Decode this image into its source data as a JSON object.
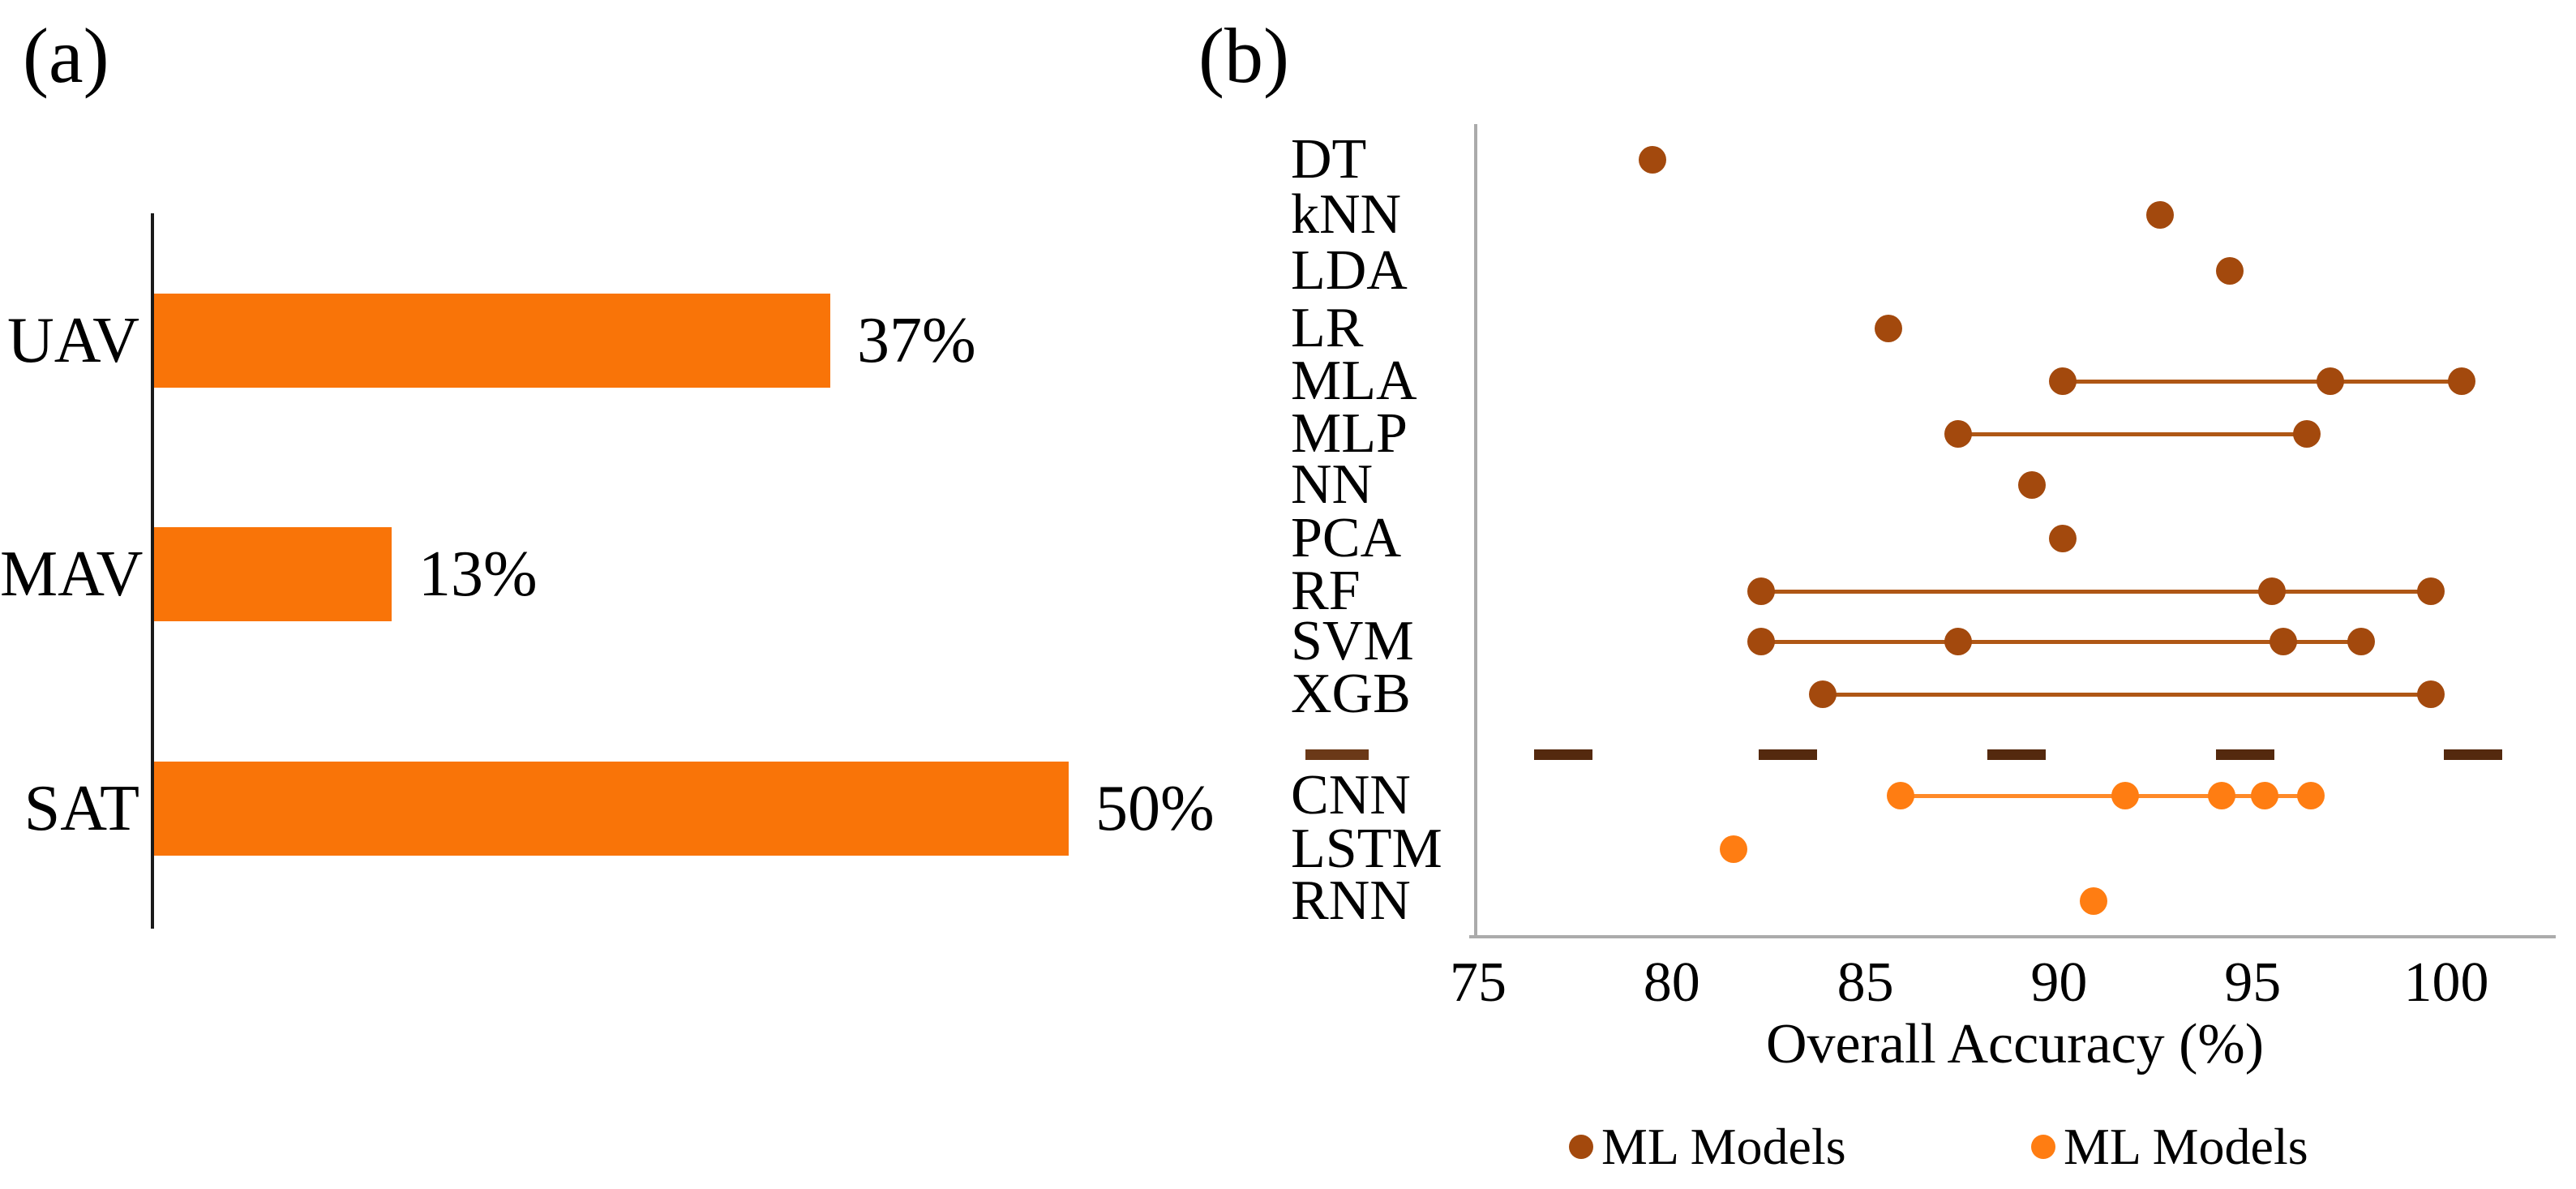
{
  "figure": {
    "panel_a_label": "(a)",
    "panel_b_label": "(b)"
  },
  "colors": {
    "bar_orange": "#F97408",
    "ml_brown": "#A3490D",
    "ml_line": "#AF5715",
    "dl_orange": "#FF7D12",
    "dl_line": "#FF8A28",
    "separator_dash": "#54290E",
    "separator_label_dash": "#6B3918",
    "axis_gray": "#ABABAB",
    "axis_black": "#1A1A1A"
  },
  "chart_data": [
    {
      "type": "bar",
      "orientation": "horizontal",
      "title": "",
      "xlabel": "",
      "ylabel": "",
      "categories": [
        "UAV",
        "MAV",
        "SAT"
      ],
      "values": [
        37,
        13,
        50
      ],
      "value_labels": [
        "37%",
        "13%",
        "50%"
      ],
      "xlim": [
        0,
        52
      ],
      "grid": false
    },
    {
      "type": "scatter",
      "subtype": "dot-range",
      "title": "",
      "xlabel": "Overall Accuracy (%)",
      "ylabel": "",
      "xlim": [
        75,
        102.8
      ],
      "xticks": [
        75,
        80,
        85,
        90,
        95,
        100
      ],
      "grid": false,
      "legend_position": "bottom",
      "legend": [
        {
          "label": "ML Models",
          "color_key": "ml_brown"
        },
        {
          "label": "ML Models",
          "color_key": "dl_orange"
        }
      ],
      "rows": [
        {
          "label": "DT",
          "group": "ml",
          "values": [
            79.5
          ]
        },
        {
          "label": "kNN",
          "group": "ml",
          "values": [
            92.6
          ]
        },
        {
          "label": "LDA",
          "group": "ml",
          "values": [
            94.4
          ]
        },
        {
          "label": "LR",
          "group": "ml",
          "values": [
            85.6
          ]
        },
        {
          "label": "MLA",
          "group": "ml",
          "values": [
            90.1,
            97.0,
            100.4
          ]
        },
        {
          "label": "MLP",
          "group": "ml",
          "values": [
            87.4,
            96.4
          ]
        },
        {
          "label": "NN",
          "group": "ml",
          "values": [
            89.3
          ]
        },
        {
          "label": "PCA",
          "group": "ml",
          "values": [
            90.1
          ]
        },
        {
          "label": "RF",
          "group": "ml",
          "values": [
            82.3,
            95.5,
            99.6
          ]
        },
        {
          "label": "SVM",
          "group": "ml",
          "values": [
            82.3,
            87.4,
            95.8,
            97.8
          ]
        },
        {
          "label": "XGB",
          "group": "ml",
          "values": [
            83.9,
            99.6
          ]
        },
        {
          "label": "–",
          "group": "separator",
          "values": [
            77.2,
            83.0,
            88.9,
            94.8,
            100.7
          ]
        },
        {
          "label": "CNN",
          "group": "dl",
          "values": [
            85.9,
            91.7,
            94.2,
            95.3,
            96.5
          ]
        },
        {
          "label": "LSTM",
          "group": "dl",
          "values": [
            81.6
          ]
        },
        {
          "label": "RNN",
          "group": "dl",
          "values": [
            90.9
          ]
        }
      ]
    }
  ]
}
